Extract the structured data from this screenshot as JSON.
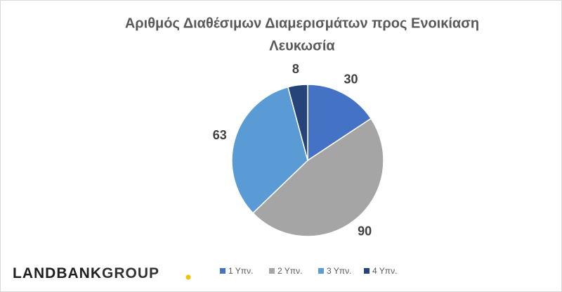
{
  "chart_data": {
    "type": "pie",
    "title": "Αριθμός Διαθέσιμων Διαμερισμάτων προς Ενοικίαση",
    "subtitle": "Λευκωσία",
    "categories": [
      "1 Υπν.",
      "2 Υπν.",
      "3 Υπν.",
      "4 Υπν."
    ],
    "values": [
      30,
      90,
      63,
      8
    ],
    "colors": [
      "#4472c4",
      "#a5a5a5",
      "#5b9bd5",
      "#264478"
    ],
    "legend": "bottom"
  },
  "logo": {
    "dark": "LANDBANK",
    "accent": "GROUP"
  }
}
